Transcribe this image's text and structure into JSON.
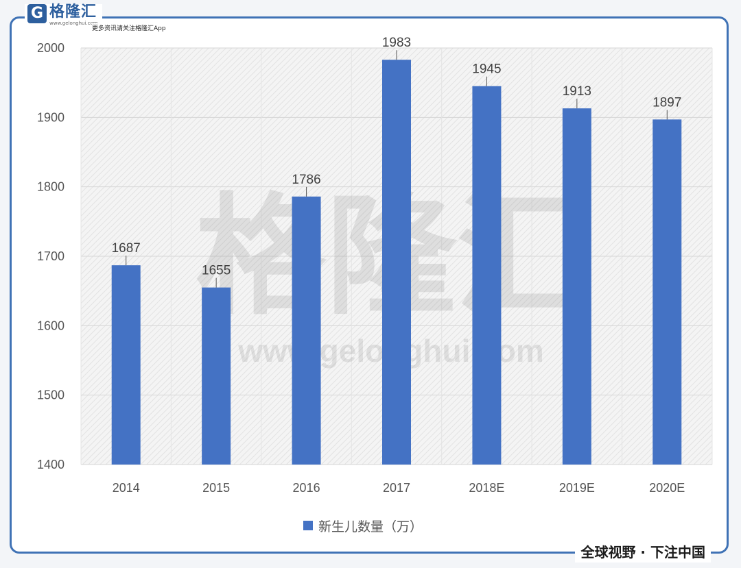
{
  "brand": {
    "logo_letter": "G",
    "name": "格隆汇",
    "url": "www.gelonghui.com",
    "slogan": "更多资讯请关注格隆汇App"
  },
  "watermark": {
    "main": "格隆汇",
    "url": "www.gelonghui.com"
  },
  "footer_tag": "全球视野 · 下注中国",
  "chart_data": {
    "type": "bar",
    "categories": [
      "2014",
      "2015",
      "2016",
      "2017",
      "2018E",
      "2019E",
      "2020E"
    ],
    "series": [
      {
        "name": "新生儿数量（万）",
        "values": [
          1687,
          1655,
          1786,
          1983,
          1945,
          1913,
          1897
        ],
        "color": "#4472c4"
      }
    ],
    "data_labels": [
      "1687",
      "1655",
      "1786",
      "1983",
      "1945",
      "1913",
      "1897"
    ],
    "y_ticks": [
      "1400",
      "1500",
      "1600",
      "1700",
      "1800",
      "1900",
      "2000"
    ],
    "ylim": [
      1400,
      2000
    ],
    "grid": true,
    "legend": "bottom-center",
    "title": "",
    "xlabel": "",
    "ylabel": ""
  }
}
